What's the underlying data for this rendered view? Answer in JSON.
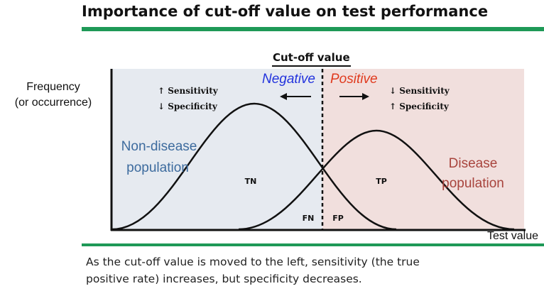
{
  "title": "Importance of cut-off value on test performance",
  "cutoff_label": "Cut-off value",
  "y_axis_label_line1": "Frequency",
  "y_axis_label_line2": "(or occurrence)",
  "x_axis_label": "Test value",
  "negative_label": "Negative",
  "positive_label": "Positive",
  "left_indicator": {
    "line1": "↑ Sensitivity",
    "line2": "↓ Specificity"
  },
  "right_indicator": {
    "line1": "↓ Sensitivity",
    "line2": "↑ Specificity"
  },
  "non_disease": {
    "line1": "Non-disease",
    "line2": "population"
  },
  "disease": {
    "line1": "Disease",
    "line2": "population"
  },
  "regions": {
    "tn": "TN",
    "tp": "TP",
    "fn": "FN",
    "fp": "FP"
  },
  "caption_line1": "As the cut-off value is moved to the left, sensitivity (the true",
  "caption_line2": "positive rate) increases, but specificity decreases.",
  "colors": {
    "negative_text": "#2233dd",
    "positive_text": "#e03a1e",
    "non_disease_bg": "#e6eaf0",
    "disease_bg": "#f1dfdd",
    "non_disease_text": "#3d6b9e",
    "disease_text": "#a8443d",
    "rule_green": "#1e9957"
  }
}
